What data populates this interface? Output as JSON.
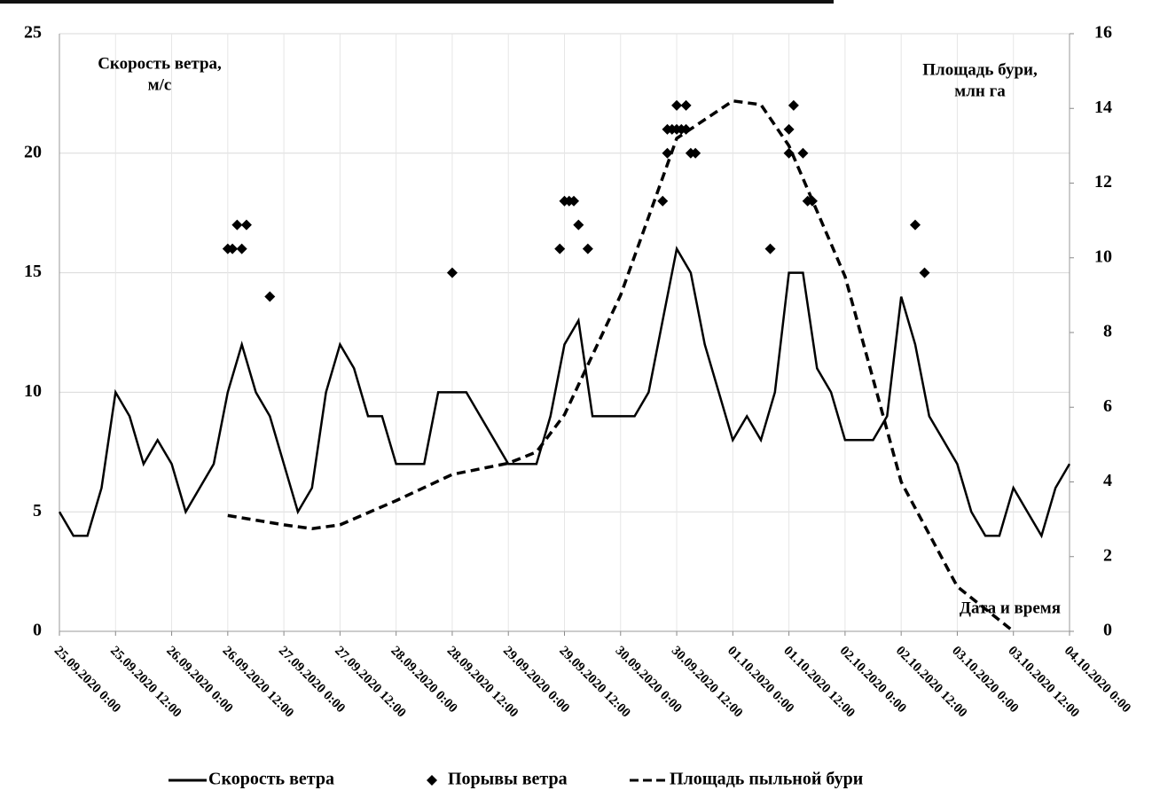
{
  "chart_data": {
    "type": "line",
    "y_title": [
      "Скорость ветра,",
      "м/с"
    ],
    "y2_title": [
      "Площадь бури,",
      "млн га"
    ],
    "x_title": "Дата и время",
    "xlim": [
      "25.09.2020 0:00",
      "04.10.2020 0:00"
    ],
    "xticks": [
      "25.09.2020 0:00",
      "25.09.2020 12:00",
      "26.09.2020 0:00",
      "26.09.2020 12:00",
      "27.09.2020 0:00",
      "27.09.2020 12:00",
      "28.09.2020 0:00",
      "28.09.2020 12:00",
      "29.09.2020 0:00",
      "29.09.2020 12:00",
      "30.09.2020 0:00",
      "30.09.2020 12:00",
      "01.10.2020 0:00",
      "01.10.2020 12:00",
      "02.10.2020 0:00",
      "02.10.2020 12:00",
      "03.10.2020 0:00",
      "03.10.2020 12:00",
      "04.10.2020 0:00"
    ],
    "ylim": [
      0,
      25
    ],
    "yticks": [
      0,
      5,
      10,
      15,
      20,
      25
    ],
    "y2lim": [
      0,
      16
    ],
    "y2ticks": [
      0,
      2,
      4,
      6,
      8,
      10,
      12,
      14,
      16
    ],
    "grid": true,
    "series": [
      {
        "name": "Скорость ветра",
        "type": "line",
        "dash": false,
        "color": "#000000",
        "x": [
          "25.09.2020 0:00",
          "25.09.2020 3:00",
          "25.09.2020 6:00",
          "25.09.2020 9:00",
          "25.09.2020 12:00",
          "25.09.2020 15:00",
          "25.09.2020 18:00",
          "25.09.2020 21:00",
          "26.09.2020 0:00",
          "26.09.2020 3:00",
          "26.09.2020 6:00",
          "26.09.2020 9:00",
          "26.09.2020 12:00",
          "26.09.2020 15:00",
          "26.09.2020 18:00",
          "26.09.2020 21:00",
          "27.09.2020 0:00",
          "27.09.2020 3:00",
          "27.09.2020 6:00",
          "27.09.2020 9:00",
          "27.09.2020 12:00",
          "27.09.2020 15:00",
          "27.09.2020 18:00",
          "27.09.2020 21:00",
          "28.09.2020 0:00",
          "28.09.2020 3:00",
          "28.09.2020 6:00",
          "28.09.2020 9:00",
          "28.09.2020 12:00",
          "28.09.2020 15:00",
          "28.09.2020 18:00",
          "28.09.2020 21:00",
          "29.09.2020 0:00",
          "29.09.2020 3:00",
          "29.09.2020 6:00",
          "29.09.2020 9:00",
          "29.09.2020 12:00",
          "29.09.2020 15:00",
          "29.09.2020 18:00",
          "29.09.2020 21:00",
          "30.09.2020 0:00",
          "30.09.2020 3:00",
          "30.09.2020 6:00",
          "30.09.2020 9:00",
          "30.09.2020 12:00",
          "30.09.2020 15:00",
          "30.09.2020 18:00",
          "30.09.2020 21:00",
          "01.10.2020 0:00",
          "01.10.2020 3:00",
          "01.10.2020 6:00",
          "01.10.2020 9:00",
          "01.10.2020 12:00",
          "01.10.2020 15:00",
          "01.10.2020 18:00",
          "01.10.2020 21:00",
          "02.10.2020 0:00",
          "02.10.2020 3:00",
          "02.10.2020 6:00",
          "02.10.2020 9:00",
          "02.10.2020 12:00",
          "02.10.2020 15:00",
          "02.10.2020 18:00",
          "02.10.2020 21:00",
          "03.10.2020 0:00",
          "03.10.2020 3:00",
          "03.10.2020 6:00",
          "03.10.2020 9:00",
          "03.10.2020 12:00",
          "03.10.2020 15:00",
          "03.10.2020 18:00",
          "03.10.2020 21:00",
          "04.10.2020 0:00"
        ],
        "values": [
          5,
          4,
          4,
          6,
          10,
          9,
          7,
          8,
          7,
          5,
          6,
          7,
          10,
          12,
          10,
          9,
          7,
          5,
          6,
          10,
          12,
          11,
          9,
          9,
          7,
          7,
          7,
          10,
          10,
          10,
          9,
          8,
          7,
          7,
          7,
          9,
          12,
          13,
          9,
          9,
          9,
          9,
          10,
          13,
          16,
          15,
          12,
          10,
          8,
          9,
          8,
          10,
          15,
          15,
          11,
          10,
          8,
          8,
          8,
          9,
          14,
          12,
          9,
          8,
          7,
          5,
          4,
          4,
          6,
          5,
          4,
          6,
          7
        ]
      },
      {
        "name": "Порывы ветра",
        "type": "scatter",
        "marker": "diamond",
        "color": "#000000",
        "x": [
          "26.09.2020 12:00",
          "26.09.2020 13:00",
          "26.09.2020 14:00",
          "26.09.2020 15:00",
          "26.09.2020 16:00",
          "26.09.2020 21:00",
          "28.09.2020 12:00",
          "29.09.2020 11:00",
          "29.09.2020 12:00",
          "29.09.2020 13:00",
          "29.09.2020 14:00",
          "29.09.2020 15:00",
          "29.09.2020 17:00",
          "30.09.2020 9:00",
          "30.09.2020 10:00",
          "30.09.2020 10:00",
          "30.09.2020 11:00",
          "30.09.2020 12:00",
          "30.09.2020 12:00",
          "30.09.2020 13:00",
          "30.09.2020 14:00",
          "30.09.2020 14:00",
          "30.09.2020 15:00",
          "30.09.2020 16:00",
          "01.10.2020 8:00",
          "01.10.2020 12:00",
          "01.10.2020 12:00",
          "01.10.2020 13:00",
          "01.10.2020 15:00",
          "01.10.2020 16:00",
          "01.10.2020 17:00",
          "02.10.2020 15:00",
          "02.10.2020 17:00"
        ],
        "values": [
          16,
          16,
          17,
          16,
          17,
          14,
          15,
          16,
          18,
          18,
          18,
          17,
          16,
          18,
          21,
          20,
          21,
          22,
          21,
          21,
          22,
          21,
          20,
          20,
          16,
          21,
          20,
          22,
          20,
          18,
          18,
          17,
          15
        ]
      },
      {
        "name": "Площадь пыльной бури",
        "type": "line",
        "dash": true,
        "axis": "y2",
        "color": "#000000",
        "x": [
          "26.09.2020 12:00",
          "27.09.2020 0:00",
          "27.09.2020 6:00",
          "27.09.2020 12:00",
          "28.09.2020 0:00",
          "28.09.2020 12:00",
          "29.09.2020 0:00",
          "29.09.2020 6:00",
          "29.09.2020 12:00",
          "30.09.2020 0:00",
          "30.09.2020 12:00",
          "01.10.2020 0:00",
          "01.10.2020 6:00",
          "01.10.2020 12:00",
          "02.10.2020 0:00",
          "02.10.2020 12:00",
          "03.10.2020 0:00",
          "03.10.2020 12:00"
        ],
        "values": [
          3.1,
          2.85,
          2.75,
          2.85,
          3.5,
          4.2,
          4.5,
          4.8,
          5.8,
          9,
          13.2,
          14.2,
          14.1,
          13,
          9.5,
          4,
          1.2,
          0
        ]
      }
    ]
  }
}
